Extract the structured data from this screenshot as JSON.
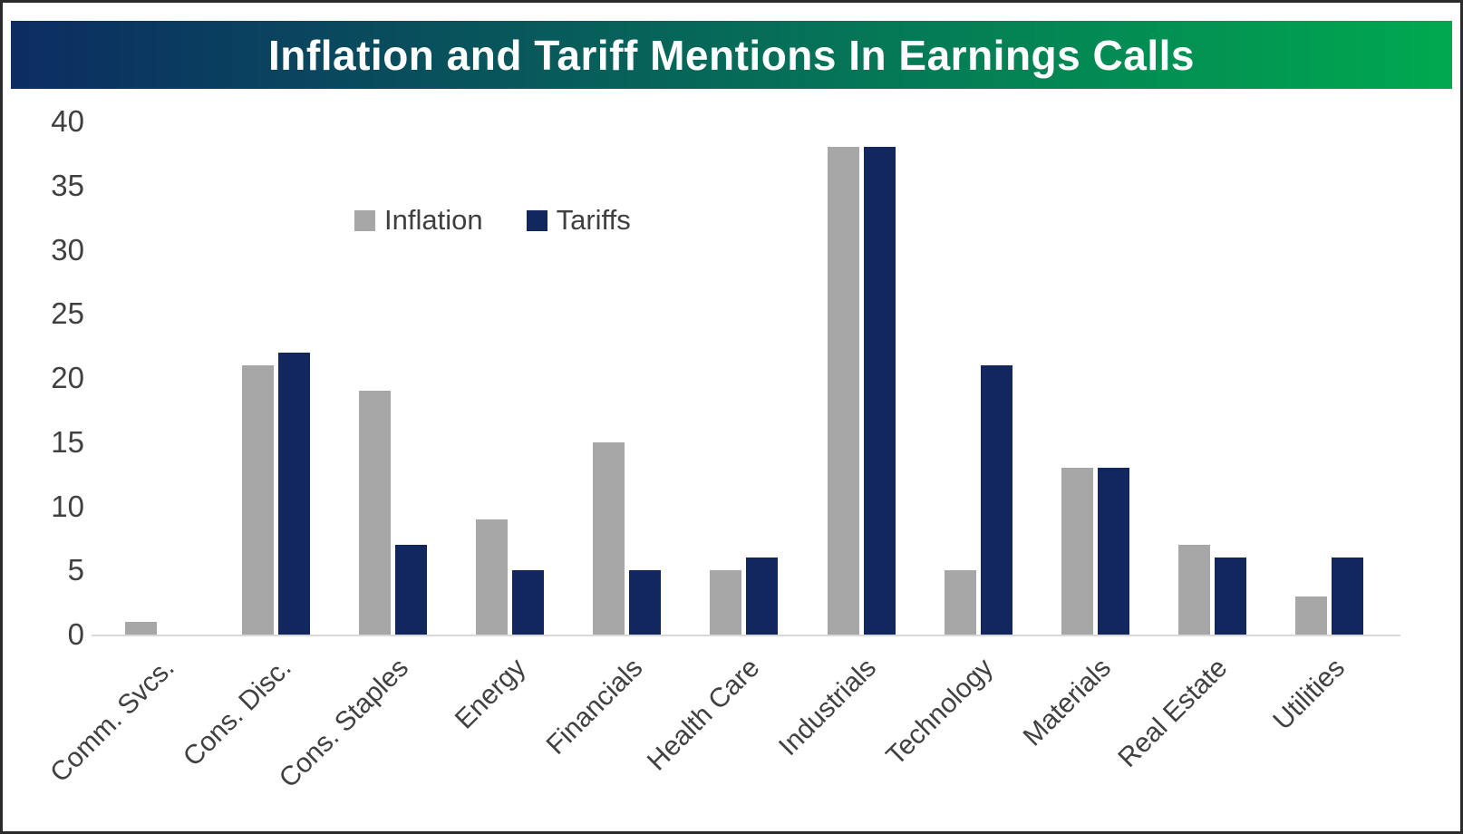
{
  "title": "Inflation and Tariff Mentions In Earnings Calls",
  "chart_data": {
    "type": "bar",
    "title": "Inflation and Tariff Mentions In Earnings Calls",
    "categories": [
      "Comm. Svcs.",
      "Cons. Disc.",
      "Cons. Staples",
      "Energy",
      "Financials",
      "Health Care",
      "Industrials",
      "Technology",
      "Materials",
      "Real Estate",
      "Utilities"
    ],
    "series": [
      {
        "name": "Inflation",
        "color": "#a7a7a7",
        "values": [
          1,
          21,
          19,
          9,
          15,
          5,
          38,
          5,
          13,
          7,
          3
        ]
      },
      {
        "name": "Tariffs",
        "color": "#12275d",
        "values": [
          0,
          22,
          7,
          5,
          5,
          6,
          38,
          21,
          13,
          6,
          6
        ]
      }
    ],
    "xlabel": "",
    "ylabel": "",
    "ylim": [
      0,
      40
    ],
    "yticks": [
      0,
      5,
      10,
      15,
      20,
      25,
      30,
      35,
      40
    ],
    "grid": false,
    "legend_position": "inside-upper-left"
  },
  "colors": {
    "header_gradient_start": "#0c2c62",
    "header_gradient_end": "#00a94f",
    "title_text": "#ffffff",
    "axis_text": "#404040",
    "axis_line": "#d9d9d9",
    "inflation_bar": "#a7a7a7",
    "tariffs_bar": "#12275d"
  }
}
